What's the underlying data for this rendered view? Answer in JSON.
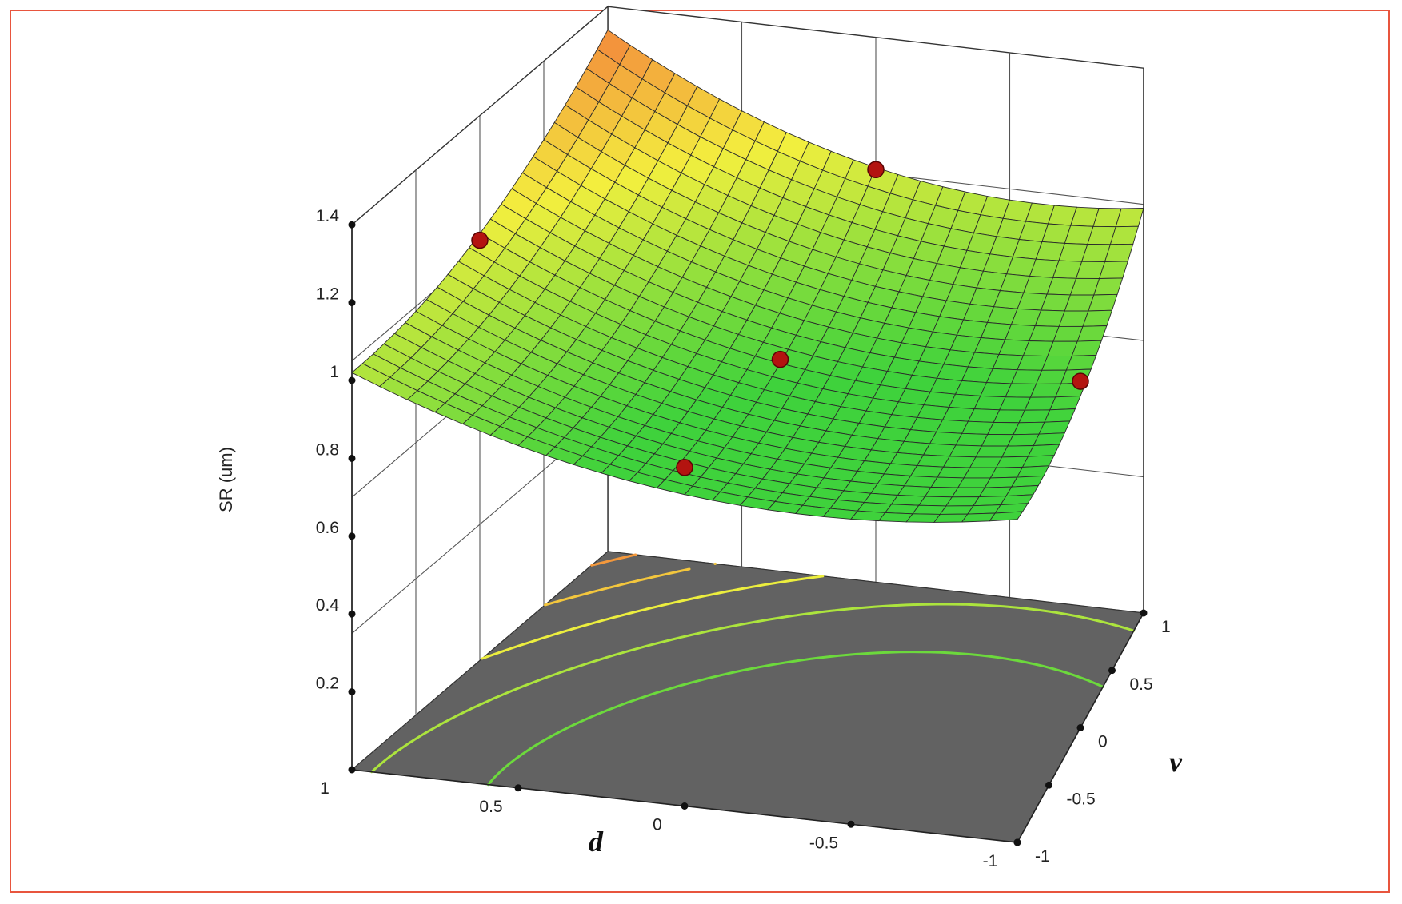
{
  "chart_data": {
    "type": "surface3d",
    "z_label": "SR (um)",
    "x_label": "d",
    "y_label": "v",
    "x_ticks": [
      "1",
      "0.5",
      "0",
      "-0.5",
      "-1"
    ],
    "y_ticks": [
      "1",
      "0.5",
      "0",
      "-0.5",
      "-1"
    ],
    "z_ticks": [
      "0.2",
      "0.4",
      "0.6",
      "0.8",
      "1",
      "1.2",
      "1.4"
    ],
    "x_range": [
      -1,
      1
    ],
    "y_range": [
      -1,
      1
    ],
    "z_range": [
      0,
      1.4
    ],
    "surface_corners": [
      {
        "d": 1,
        "v": 1,
        "sr": 1.34
      },
      {
        "d": 1,
        "v": -1,
        "sr": 1.02
      },
      {
        "d": -1,
        "v": 1,
        "sr": 1.04
      },
      {
        "d": -1,
        "v": -1,
        "sr": 0.83
      }
    ],
    "surface_center": {
      "d": 0,
      "v": 0,
      "sr": 0.85
    },
    "design_points": [
      {
        "d": 1,
        "v": 0,
        "sr": 1.08
      },
      {
        "d": 0,
        "v": 1,
        "sr": 1.06
      },
      {
        "d": 0,
        "v": 0,
        "sr": 0.86
      },
      {
        "d": 0,
        "v": -1,
        "sr": 0.87
      },
      {
        "d": -1,
        "v": 0,
        "sr": 0.89
      }
    ],
    "colors": {
      "frame_border": "#e8553e",
      "floor": "#626262",
      "surface_low": "#3fd23c",
      "surface_mid": "#f3ef3e",
      "surface_high": "#f3863c",
      "design_point": "#b31410"
    },
    "grid": true
  }
}
